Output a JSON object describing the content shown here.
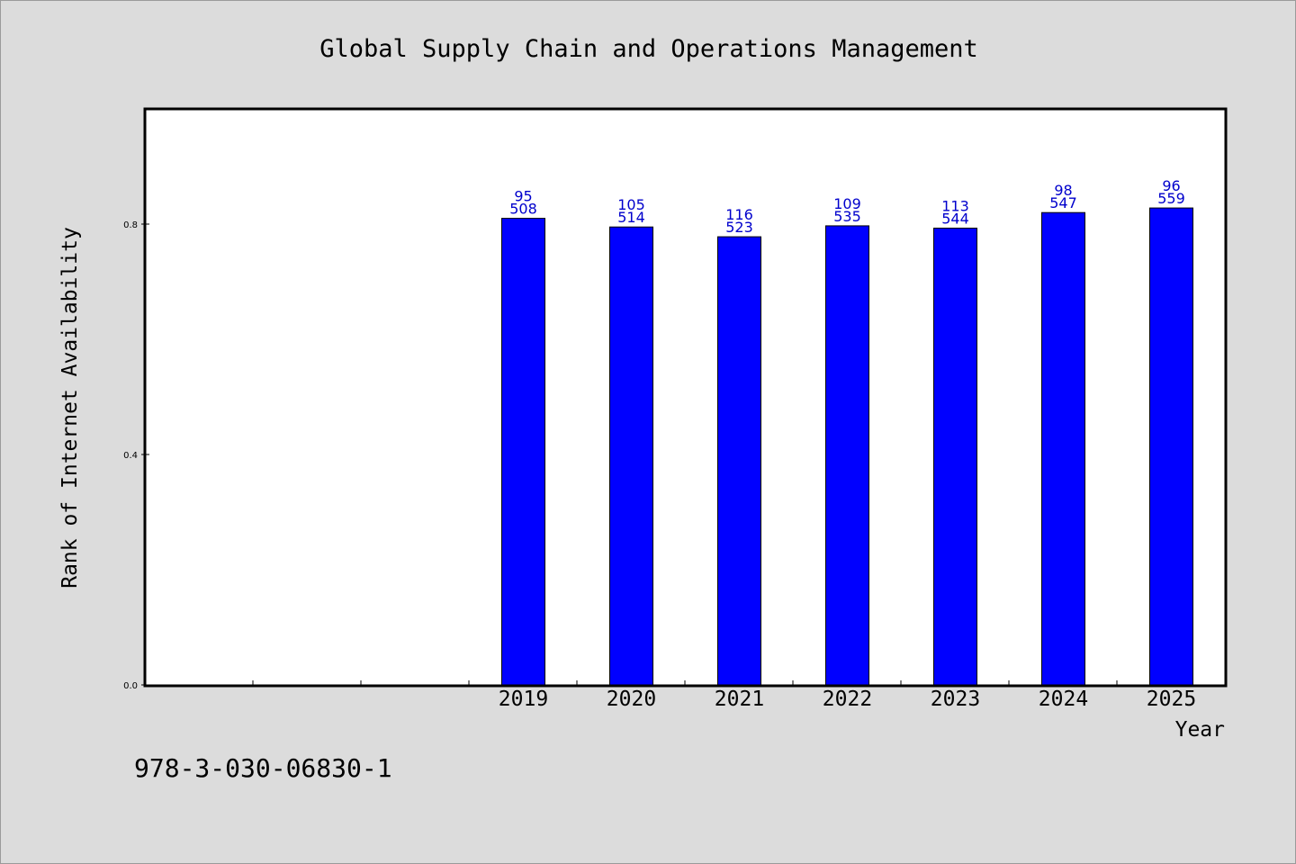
{
  "chart_data": {
    "type": "bar",
    "title": "Global Supply Chain and Operations Management",
    "xlabel": "Year",
    "ylabel": "Rank of Internet Availability",
    "categories": [
      "",
      "",
      "",
      "2019",
      "2020",
      "2021",
      "2022",
      "2023",
      "2024",
      "2025"
    ],
    "values": [
      null,
      null,
      null,
      0.81,
      0.795,
      0.778,
      0.797,
      0.793,
      0.82,
      0.828
    ],
    "label_top": [
      "",
      "",
      "",
      "95",
      "105",
      "116",
      "109",
      "113",
      "98",
      "96"
    ],
    "label_bottom": [
      "",
      "",
      "",
      "508",
      "514",
      "523",
      "535",
      "544",
      "547",
      "559"
    ],
    "ylim": [
      0,
      1.0
    ],
    "yticks": [
      {
        "value": 0.0,
        "label": "0.0"
      },
      {
        "value": 0.4,
        "label": "0.4"
      },
      {
        "value": 0.8,
        "label": "0.8"
      }
    ],
    "bar_color": "#0000ff",
    "label_color": "#0000cc",
    "grid": false,
    "legend": "none"
  },
  "footer": {
    "isbn": "978-3-030-06830-1"
  }
}
